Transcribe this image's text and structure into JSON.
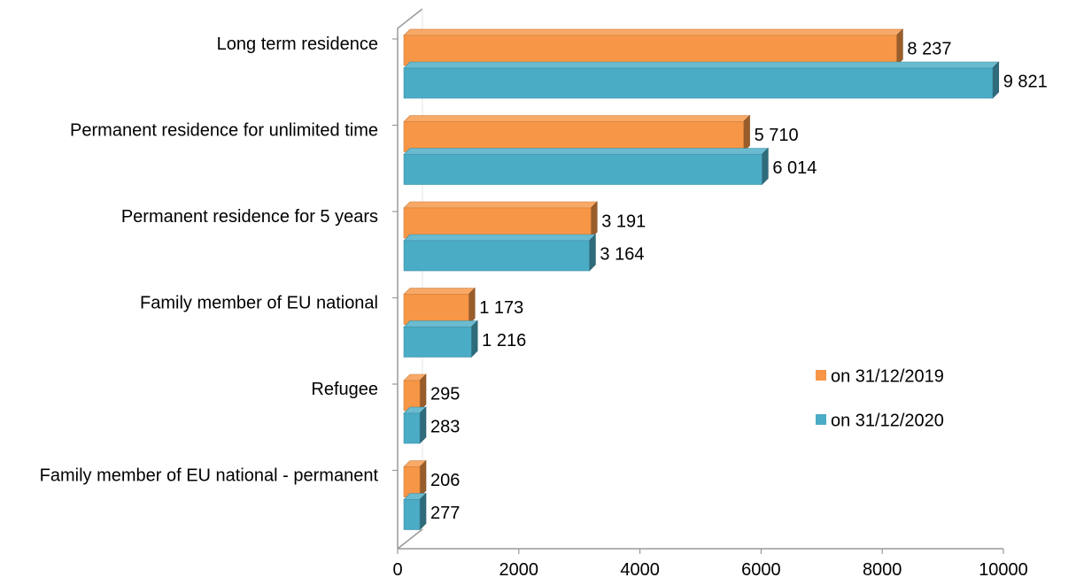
{
  "chart_data": {
    "type": "bar",
    "orientation": "horizontal",
    "style": "3d",
    "categories": [
      "Long term residence",
      "Permanent residence for unlimited time",
      "Permanent residence for 5 years",
      "Family member of EU national ",
      "Refugee",
      "Family member of EU national - permanent"
    ],
    "series": [
      {
        "name": "on 31/12/2019",
        "color": "#F79646",
        "values": [
          8237,
          5710,
          3191,
          1173,
          295,
          206
        ],
        "labels": [
          "8 237",
          "5 710",
          "3 191",
          "1 173",
          "295",
          "206"
        ]
      },
      {
        "name": "on 31/12/2020",
        "color": "#4BACC6",
        "values": [
          9821,
          6014,
          3164,
          1216,
          283,
          277
        ],
        "labels": [
          "9 821",
          "6 014",
          "3 164",
          "1 216",
          "283",
          "277"
        ]
      }
    ],
    "xticks": [
      "0",
      "2000",
      "4000",
      "6000",
      "8000",
      "10000"
    ],
    "xlim": [
      0,
      10000
    ],
    "legend_position": "right",
    "grid": false
  }
}
